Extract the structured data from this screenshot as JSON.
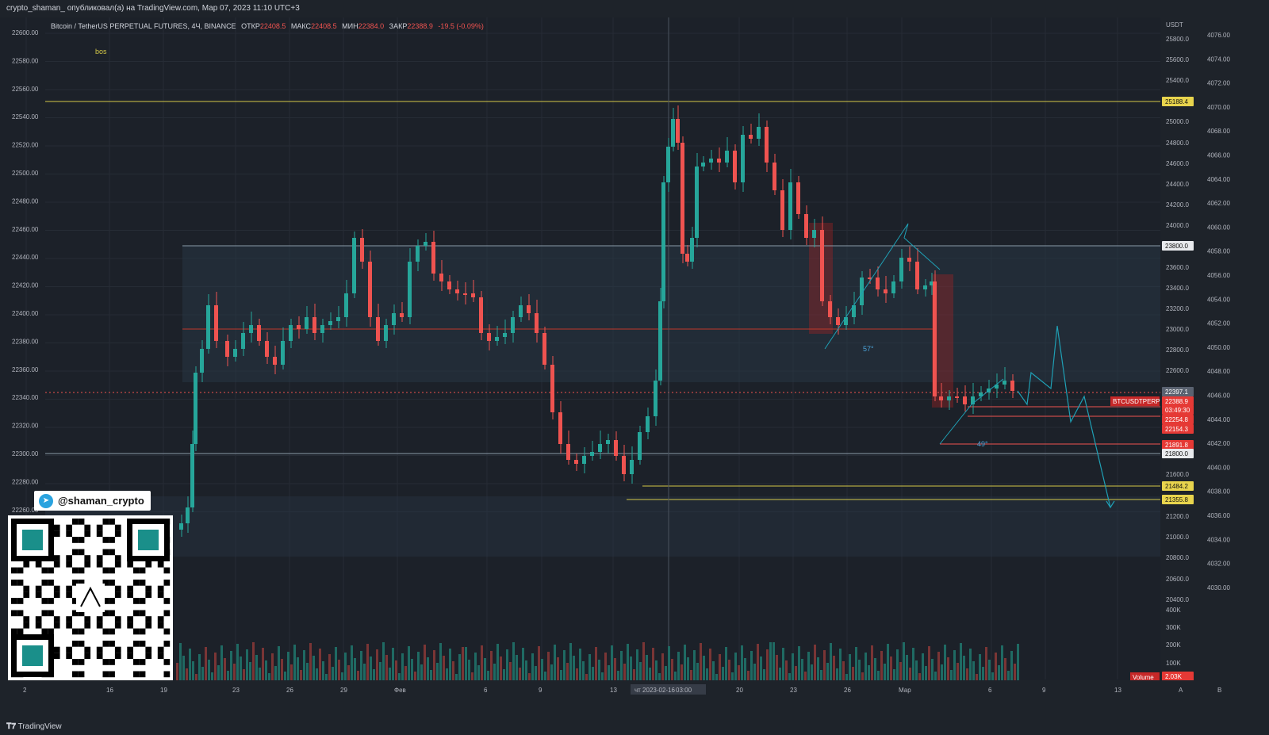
{
  "header": {
    "publish_line": "crypto_shaman_ опубликовал(а) на TradingView.com, Мар 07, 2023 11:10 UTC+3"
  },
  "legend": {
    "symbol": "Bitcoin / TetherUS PERPETUAL FUTURES, 4Ч, BINANCE",
    "open_label": "ОТКР",
    "open_value": "22408.5",
    "high_label": "МАКС",
    "high_value": "22408.5",
    "low_label": "МИН",
    "low_value": "22384.0",
    "close_label": "ЗАКР",
    "close_value": "22388.9",
    "change": "-19.5 (-0.09%)"
  },
  "annotations": {
    "bos": "bos",
    "angle1": "57°",
    "angle2": "49°"
  },
  "promo": {
    "telegram_handle": "@shaman_crypto"
  },
  "left_axis": [
    "22600.00",
    "22580.00",
    "22560.00",
    "22540.00",
    "22520.00",
    "22500.00",
    "22480.00",
    "22460.00",
    "22440.00",
    "22420.00",
    "22400.00",
    "22380.00",
    "22360.00",
    "22340.00",
    "22320.00",
    "22300.00",
    "22280.00",
    "22260.00"
  ],
  "right_axis_label": "USDT",
  "right_axis": [
    "25800.0",
    "25600.0",
    "25400.0",
    "25000.0",
    "24800.0",
    "24600.0",
    "24400.0",
    "24200.0",
    "24000.0",
    "23600.0",
    "23400.0",
    "23200.0",
    "23000.0",
    "22800.0",
    "22600.0",
    "21600.0",
    "21200.0",
    "21000.0",
    "20800.0",
    "20600.0",
    "20400.0"
  ],
  "far_right_axis": [
    "4076.00",
    "4074.00",
    "4072.00",
    "4070.00",
    "4068.00",
    "4066.00",
    "4064.00",
    "4062.00",
    "4060.00",
    "4058.00",
    "4056.00",
    "4054.00",
    "4052.00",
    "4050.00",
    "4048.00",
    "4046.00",
    "4044.00",
    "4042.00",
    "4040.00",
    "4038.00",
    "4036.00",
    "4034.00",
    "4032.00",
    "4030.00"
  ],
  "price_tags": {
    "level_25188": "25188.4",
    "level_23800": "23800.0",
    "last_price": "22397.1",
    "symbol_tag": "BTCUSDTPERP",
    "current": "22388.9",
    "countdown": "03:49:30",
    "tag_22254": "22254.8",
    "tag_22154": "22154.3",
    "tag_21891": "21891.8",
    "level_21800": "21800.0",
    "level_21484": "21484.2",
    "level_21355": "21355.8"
  },
  "volume_axis": [
    "400K",
    "300K",
    "200K",
    "100K"
  ],
  "volume": {
    "label": "Volume",
    "value": "2.03K"
  },
  "time_axis": [
    "2",
    "16",
    "19",
    "23",
    "26",
    "29",
    "Фев",
    "6",
    "9",
    "13",
    "чт 2023-02-16",
    "03:00",
    "20",
    "23",
    "26",
    "Мар",
    "6",
    "9",
    "13"
  ],
  "corner_labels": [
    "A",
    "B"
  ],
  "footer": {
    "brand": "TradingView"
  },
  "colors": {
    "up": "#26a69a",
    "down": "#ef5350",
    "level_yellow": "#d4c848",
    "projection": "#1fa0b5"
  }
}
